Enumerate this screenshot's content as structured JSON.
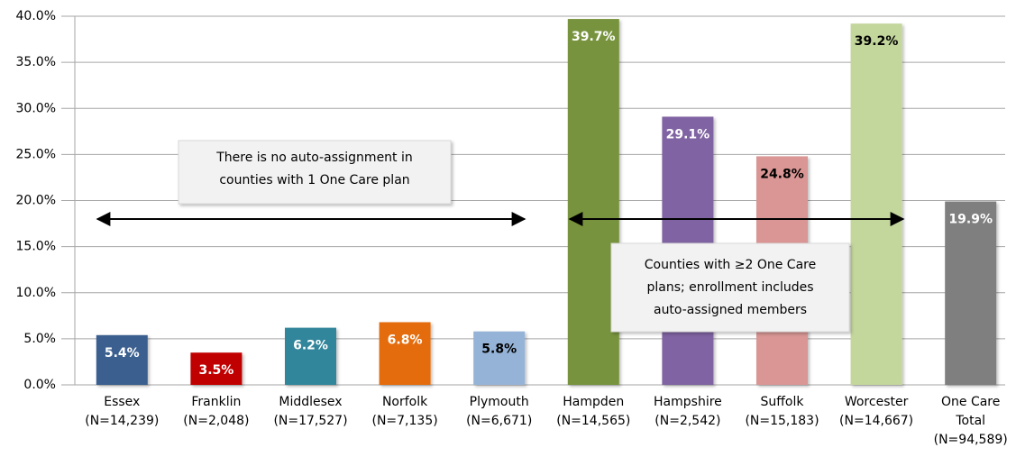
{
  "chart_data": {
    "type": "bar",
    "categories": [
      [
        "Essex",
        "(N=14,239)"
      ],
      [
        "Franklin",
        "(N=2,048)"
      ],
      [
        "Middlesex",
        "(N=17,527)"
      ],
      [
        "Norfolk",
        "(N=7,135)"
      ],
      [
        "Plymouth",
        "(N=6,671)"
      ],
      [
        "Hampden",
        "(N=14,565)"
      ],
      [
        "Hampshire",
        "(N=2,542)"
      ],
      [
        "Suffolk",
        "(N=15,183)"
      ],
      [
        "Worcester",
        "(N=14,667)"
      ],
      [
        "One Care",
        "Total",
        "(N=94,589)"
      ]
    ],
    "values": [
      5.4,
      3.5,
      6.2,
      6.8,
      5.8,
      39.7,
      29.1,
      24.8,
      39.2,
      19.9
    ],
    "value_labels": [
      "5.4%",
      "3.5%",
      "6.2%",
      "6.8%",
      "5.8%",
      "39.7%",
      "29.1%",
      "24.8%",
      "39.2%",
      "19.9%"
    ],
    "colors": [
      "#3b5f8e",
      "#c00000",
      "#31869b",
      "#e46c0a",
      "#95b3d7",
      "#77933c",
      "#8064a2",
      "#d99694",
      "#c3d69b",
      "#7f7f7f"
    ],
    "label_colors": [
      "#ffffff",
      "#ffffff",
      "#ffffff",
      "#ffffff",
      "#000000",
      "#ffffff",
      "#ffffff",
      "#000000",
      "#000000",
      "#ffffff"
    ],
    "ylim": [
      0,
      40
    ],
    "yticks": [
      {
        "value": 0,
        "label": "0.0%"
      },
      {
        "value": 5,
        "label": "5.0%"
      },
      {
        "value": 10,
        "label": "10.0%"
      },
      {
        "value": 15,
        "label": "15.0%"
      },
      {
        "value": 20,
        "label": "20.0%"
      },
      {
        "value": 25,
        "label": "25.0%"
      },
      {
        "value": 30,
        "label": "30.0%"
      },
      {
        "value": 35,
        "label": "35.0%"
      },
      {
        "value": 40,
        "label": "40.0%"
      }
    ],
    "grid": true,
    "annotations": [
      {
        "lines": [
          "There is no auto-assignment in",
          "counties with 1 One Care plan"
        ]
      },
      {
        "lines": [
          "Counties with ≥2 One Care",
          "plans; enrollment includes",
          "auto-assigned members"
        ]
      }
    ]
  }
}
